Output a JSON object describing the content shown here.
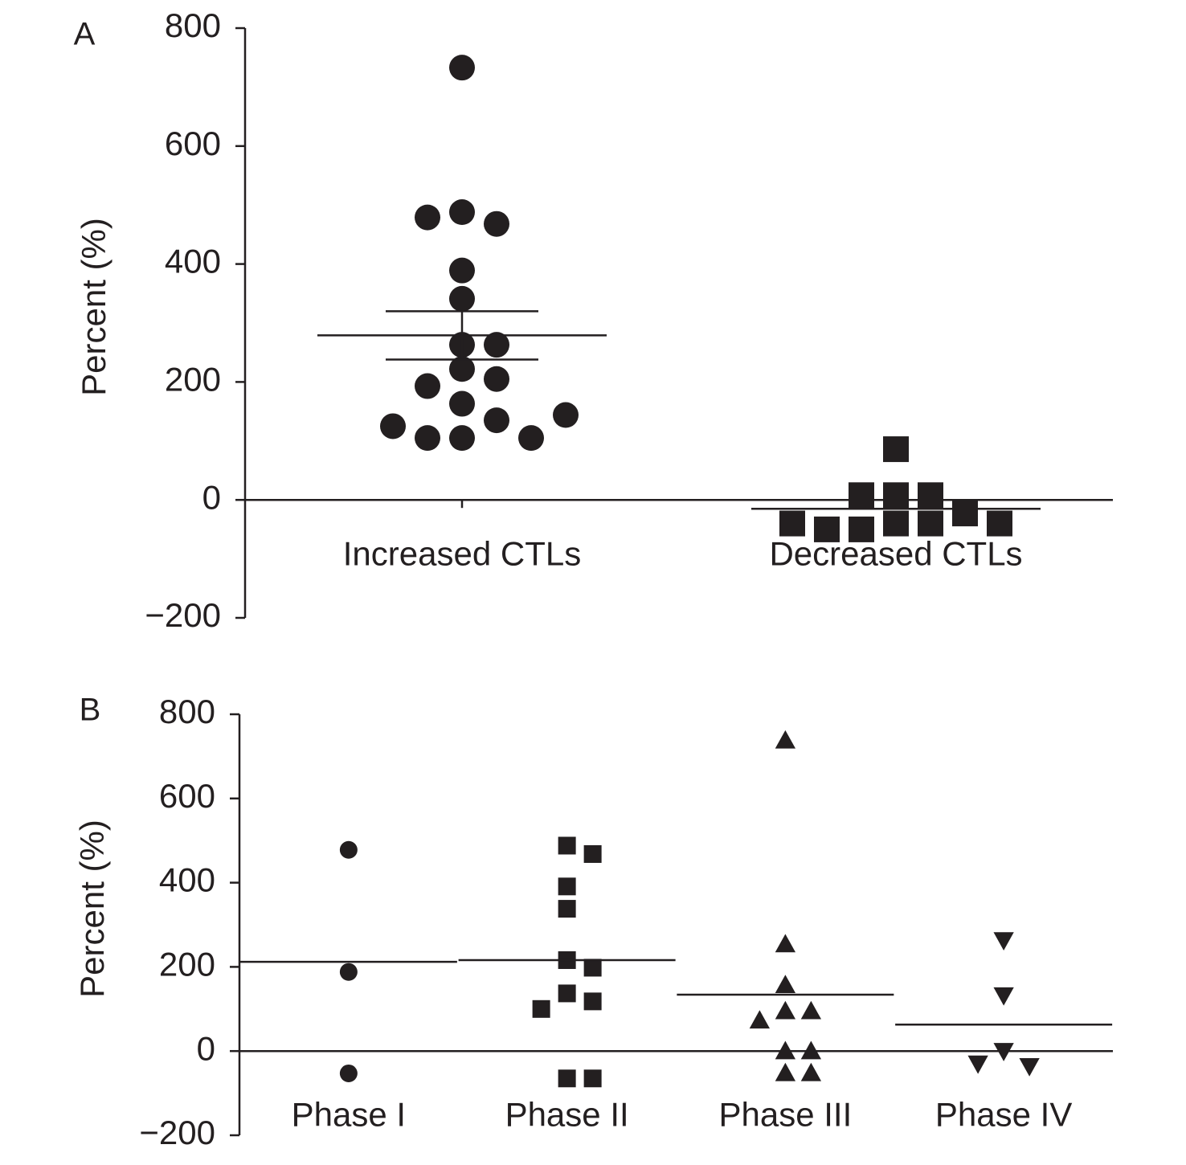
{
  "chart_data": [
    {
      "type": "dot",
      "panel_label": "A",
      "ylabel": "Percent (%)",
      "color": "#231f20",
      "categories": [
        "Increased CTLs",
        "Decreased CTLs"
      ],
      "markers": [
        "circle",
        "square"
      ],
      "values": [
        [
          733,
          488,
          468,
          479,
          389,
          341,
          263,
          263,
          222,
          205,
          193,
          163,
          135,
          105,
          105,
          105,
          125,
          144
        ],
        [
          86,
          8,
          8,
          8,
          -23,
          -40,
          -40,
          -50,
          -50,
          -40,
          -40
        ]
      ],
      "means": [
        279,
        -15
      ],
      "errors": [
        41,
        null
      ],
      "ylim": [
        -200,
        800
      ],
      "yticks": [
        {
          "value": -200,
          "label": "−200"
        },
        0,
        200,
        400,
        600,
        800
      ],
      "xtick_marks": true
    },
    {
      "type": "dot",
      "panel_label": "B",
      "ylabel": "Percent (%)",
      "color": "#231f20",
      "categories": [
        "Phase I",
        "Phase II",
        "Phase III",
        "Phase IV"
      ],
      "markers": [
        "circle",
        "square",
        "triangle",
        "triangle-down"
      ],
      "values": [
        [
          478,
          188,
          -53
        ],
        [
          488,
          468,
          391,
          338,
          216,
          198,
          137,
          118,
          100,
          -65,
          -65
        ],
        [
          738,
          254,
          157,
          95,
          95,
          73,
          0,
          0,
          -52,
          -52
        ],
        [
          263,
          132,
          0,
          -36,
          -30
        ]
      ],
      "means": [
        212,
        216,
        134,
        63
      ],
      "errors": [
        null,
        null,
        null,
        null
      ],
      "ylim": [
        -200,
        800
      ],
      "yticks": [
        {
          "value": -200,
          "label": "−200"
        },
        0,
        200,
        400,
        600,
        800
      ],
      "xtick_marks": false
    }
  ]
}
